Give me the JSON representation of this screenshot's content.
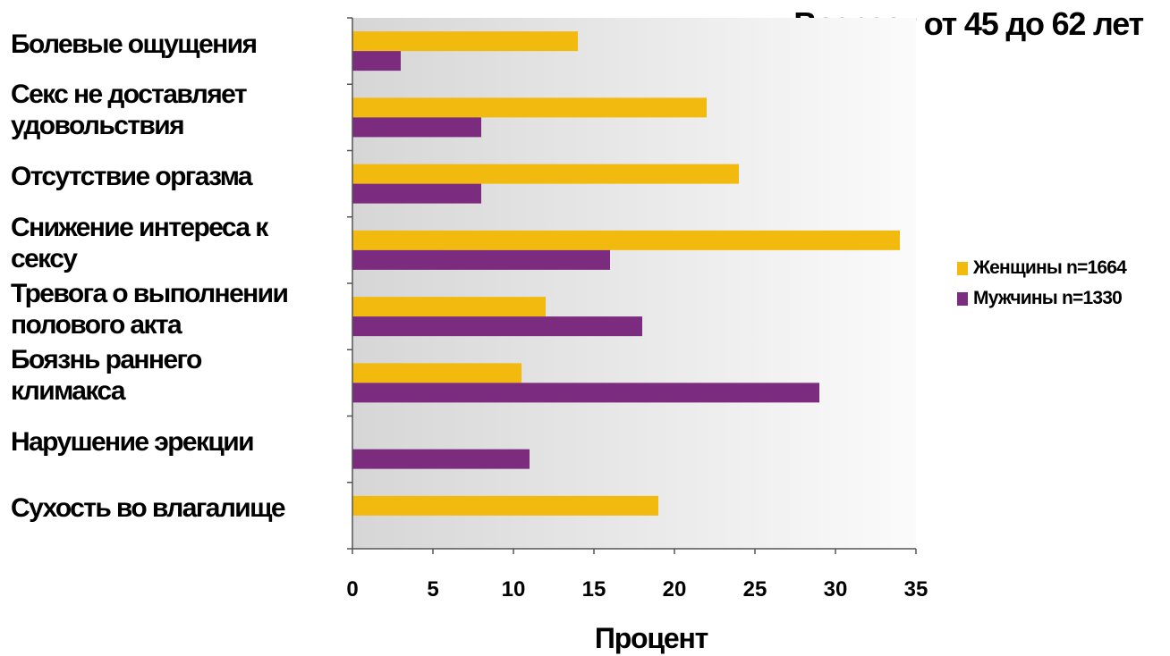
{
  "colors": {
    "women": "#F2B90F",
    "men": "#7B2C7E",
    "plot_bg_left": "#D6D6D6",
    "plot_bg_right": "#FBFBFB",
    "axis": "#555555"
  },
  "chart_data": {
    "type": "bar",
    "orientation": "horizontal",
    "title": "Возраст от 45 до 62 лет",
    "xlabel": "Процент",
    "ylabel": "",
    "xlim": [
      0,
      35
    ],
    "x_ticks": [
      0,
      5,
      10,
      15,
      20,
      25,
      30,
      35
    ],
    "grid": false,
    "legend_position": "right",
    "categories": [
      "Болевые ощущения",
      "Секс не доставляет\nудовольствия",
      "Отсутствие оргазма",
      "Снижение интереса к\nсексу",
      "Тревога о выполнении\nполового акта",
      "Боязнь раннего\nклимакса",
      "Нарушение эрекции",
      "Сухость во влагалище"
    ],
    "series": [
      {
        "name": "Женщины n=1664",
        "values": [
          14,
          22,
          24,
          34,
          12,
          10.5,
          null,
          19
        ]
      },
      {
        "name": "Мужчины n=1330",
        "values": [
          3,
          8,
          8,
          16,
          18,
          29,
          11,
          null
        ]
      }
    ]
  }
}
